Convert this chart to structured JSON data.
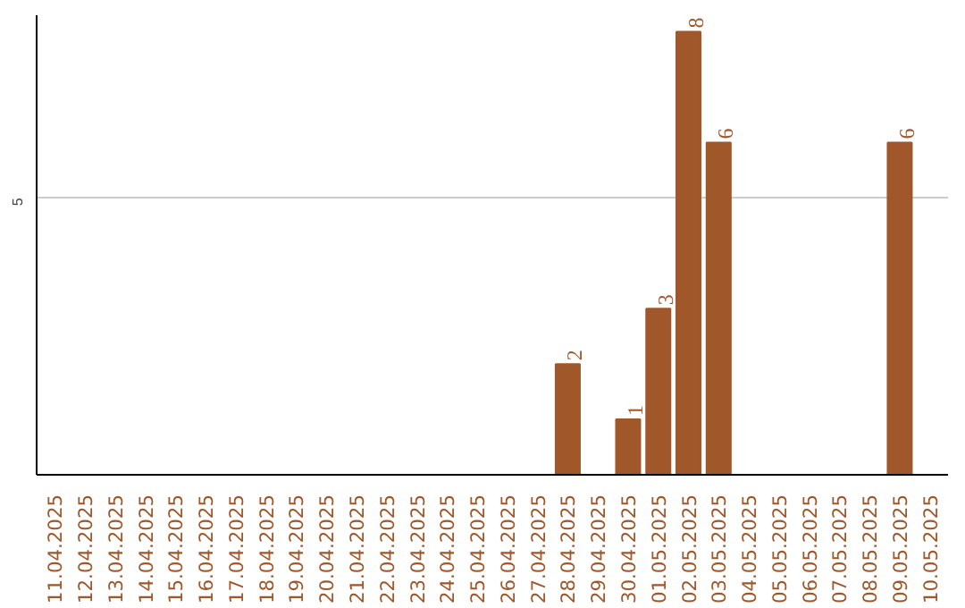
{
  "chart_data": {
    "type": "bar",
    "categories": [
      "11.04.2025",
      "12.04.2025",
      "13.04.2025",
      "14.04.2025",
      "15.04.2025",
      "16.04.2025",
      "17.04.2025",
      "18.04.2025",
      "19.04.2025",
      "20.04.2025",
      "21.04.2025",
      "22.04.2025",
      "23.04.2025",
      "24.04.2025",
      "25.04.2025",
      "26.04.2025",
      "27.04.2025",
      "28.04.2025",
      "29.04.2025",
      "30.04.2025",
      "01.05.2025",
      "02.05.2025",
      "03.05.2025",
      "04.05.2025",
      "05.05.2025",
      "06.05.2025",
      "07.05.2025",
      "08.05.2025",
      "09.05.2025",
      "10.05.2025"
    ],
    "values": [
      null,
      null,
      null,
      null,
      null,
      null,
      null,
      null,
      null,
      null,
      null,
      null,
      null,
      null,
      null,
      null,
      null,
      2,
      null,
      1,
      3,
      8,
      6,
      null,
      null,
      null,
      null,
      null,
      6,
      null
    ],
    "color": "#a0572a",
    "ylim": [
      0,
      8.3
    ],
    "yticks": [
      5
    ],
    "grid": "y",
    "data_labels": true
  }
}
